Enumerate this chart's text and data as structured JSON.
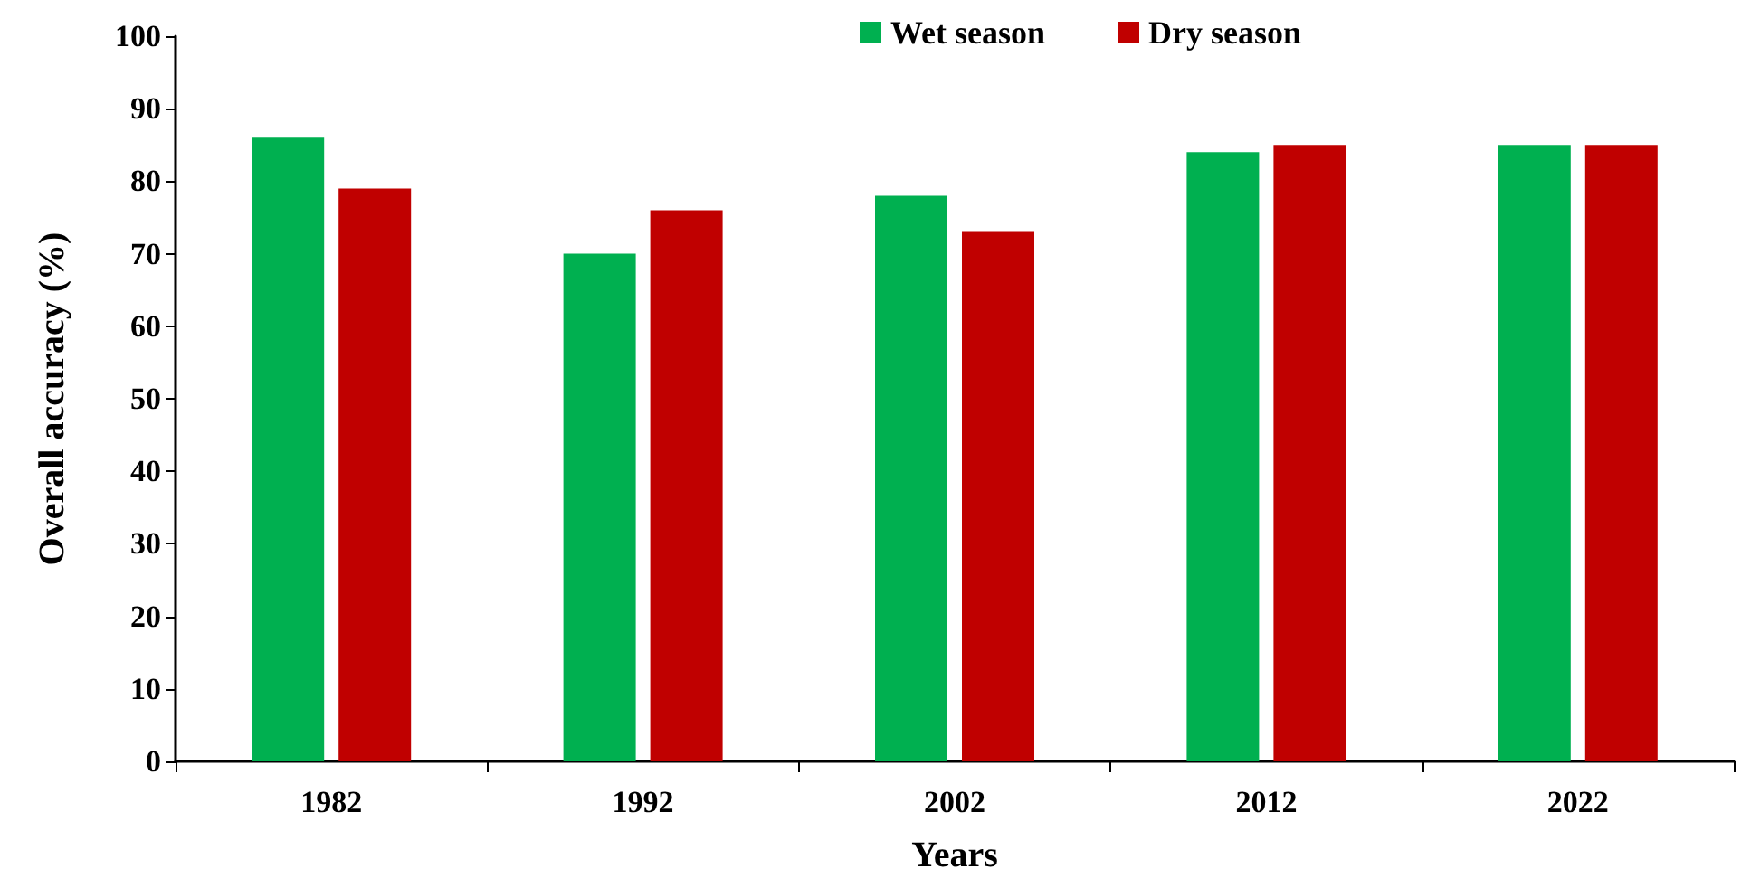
{
  "chart_data": {
    "type": "bar",
    "xlabel": "Years",
    "ylabel": "Overall accuracy (%)",
    "categories": [
      "1982",
      "1992",
      "2002",
      "2012",
      "2022"
    ],
    "series": [
      {
        "name": "Wet season",
        "color": "#00b050",
        "values": [
          86,
          70,
          78,
          84,
          85
        ]
      },
      {
        "name": "Dry season",
        "color": "#c00000",
        "values": [
          79,
          76,
          73,
          85,
          85
        ]
      }
    ],
    "ylim": [
      0,
      100
    ],
    "yticks": [
      0,
      10,
      20,
      30,
      40,
      50,
      60,
      70,
      80,
      90,
      100
    ],
    "grid": false,
    "legend": "top"
  }
}
